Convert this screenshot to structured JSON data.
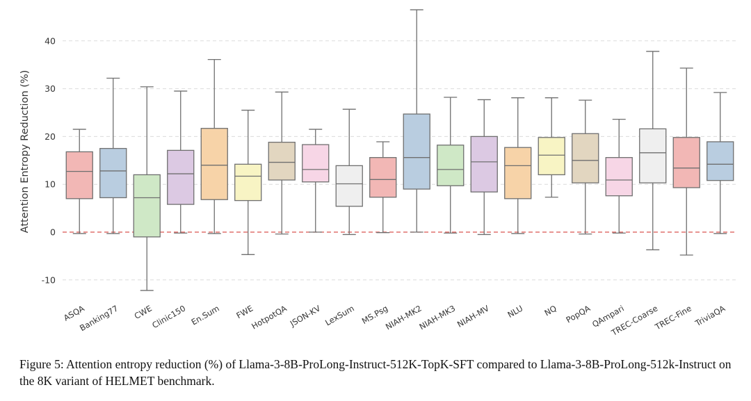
{
  "chart_data": {
    "type": "boxplot",
    "title": "",
    "xlabel": "",
    "ylabel": "Attention Entropy Reduction (%)",
    "ylim": [
      -13,
      48
    ],
    "yticks": [
      -10,
      0,
      10,
      20,
      30,
      40
    ],
    "reference_line": {
      "y": 0,
      "style": "dashed",
      "color": "#d9534f"
    },
    "grid": "horizontal-dashed",
    "categories": [
      "ASQA",
      "Banking77",
      "CWE",
      "Clinic150",
      "En.Sum",
      "FWE",
      "HotpotQA",
      "JSON-KV",
      "LexSum",
      "MS.Psg",
      "NIAH-MK2",
      "NIAH-MK3",
      "NIAH-MV",
      "NLU",
      "NQ",
      "PopQA",
      "QAmpari",
      "TREC-Coarse",
      "TREC-Fine",
      "TriviaQA"
    ],
    "boxes": [
      {
        "label": "ASQA",
        "whisker_low": -0.3,
        "q1": 7.0,
        "median": 12.7,
        "q3": 16.8,
        "whisker_high": 21.5,
        "color": "#f2b7b5"
      },
      {
        "label": "Banking77",
        "whisker_low": -0.3,
        "q1": 7.2,
        "median": 12.8,
        "q3": 17.5,
        "whisker_high": 32.2,
        "color": "#b9cde0"
      },
      {
        "label": "CWE",
        "whisker_low": -12.2,
        "q1": -1.0,
        "median": 7.2,
        "q3": 12.0,
        "whisker_high": 30.4,
        "color": "#cfe8c6"
      },
      {
        "label": "Clinic150",
        "whisker_low": -0.2,
        "q1": 5.8,
        "median": 12.2,
        "q3": 17.1,
        "whisker_high": 29.5,
        "color": "#dcc9e3"
      },
      {
        "label": "En.Sum",
        "whisker_low": -0.3,
        "q1": 6.8,
        "median": 14.0,
        "q3": 21.7,
        "whisker_high": 36.1,
        "color": "#f7d3a8"
      },
      {
        "label": "FWE",
        "whisker_low": -4.7,
        "q1": 6.6,
        "median": 11.7,
        "q3": 14.2,
        "whisker_high": 25.5,
        "color": "#f8f4c4"
      },
      {
        "label": "HotpotQA",
        "whisker_low": -0.4,
        "q1": 10.9,
        "median": 14.6,
        "q3": 18.8,
        "whisker_high": 29.3,
        "color": "#e2d6c0"
      },
      {
        "label": "JSON-KV",
        "whisker_low": 0.0,
        "q1": 10.5,
        "median": 13.1,
        "q3": 18.3,
        "whisker_high": 21.5,
        "color": "#f7d6e6"
      },
      {
        "label": "LexSum",
        "whisker_low": -0.5,
        "q1": 5.4,
        "median": 10.1,
        "q3": 13.9,
        "whisker_high": 25.7,
        "color": "#efefef"
      },
      {
        "label": "MS.Psg",
        "whisker_low": -0.1,
        "q1": 7.3,
        "median": 11.0,
        "q3": 15.6,
        "whisker_high": 18.9,
        "color": "#f2b7b5"
      },
      {
        "label": "NIAH-MK2",
        "whisker_low": 0.0,
        "q1": 9.0,
        "median": 15.6,
        "q3": 24.7,
        "whisker_high": 46.5,
        "color": "#b9cde0"
      },
      {
        "label": "NIAH-MK3",
        "whisker_low": -0.2,
        "q1": 9.7,
        "median": 13.1,
        "q3": 18.2,
        "whisker_high": 28.2,
        "color": "#cfe8c6"
      },
      {
        "label": "NIAH-MV",
        "whisker_low": -0.5,
        "q1": 8.4,
        "median": 14.7,
        "q3": 20.0,
        "whisker_high": 27.7,
        "color": "#dcc9e3"
      },
      {
        "label": "NLU",
        "whisker_low": -0.3,
        "q1": 7.0,
        "median": 13.9,
        "q3": 17.7,
        "whisker_high": 28.1,
        "color": "#f7d3a8"
      },
      {
        "label": "NQ",
        "whisker_low": 7.3,
        "q1": 12.0,
        "median": 16.1,
        "q3": 19.8,
        "whisker_high": 28.1,
        "color": "#f8f4c4"
      },
      {
        "label": "PopQA",
        "whisker_low": -0.4,
        "q1": 10.3,
        "median": 15.0,
        "q3": 20.6,
        "whisker_high": 27.6,
        "color": "#e2d6c0"
      },
      {
        "label": "QAmpari",
        "whisker_low": -0.2,
        "q1": 7.6,
        "median": 10.9,
        "q3": 15.6,
        "whisker_high": 23.6,
        "color": "#f7d6e6"
      },
      {
        "label": "TREC-Coarse",
        "whisker_low": -3.7,
        "q1": 10.3,
        "median": 16.6,
        "q3": 21.6,
        "whisker_high": 37.8,
        "color": "#efefef"
      },
      {
        "label": "TREC-Fine",
        "whisker_low": -4.8,
        "q1": 9.3,
        "median": 13.4,
        "q3": 19.8,
        "whisker_high": 34.3,
        "color": "#f2b7b5"
      },
      {
        "label": "TriviaQA",
        "whisker_low": -0.3,
        "q1": 10.8,
        "median": 14.2,
        "q3": 18.9,
        "whisker_high": 29.2,
        "color": "#b9cde0"
      }
    ]
  },
  "caption": {
    "text": "Figure 5: Attention entropy reduction (%) of Llama-3-8B-ProLong-Instruct-512K-TopK-SFT compared to Llama-3-8B-ProLong-512k-Instruct on the 8K variant of HELMET benchmark."
  }
}
